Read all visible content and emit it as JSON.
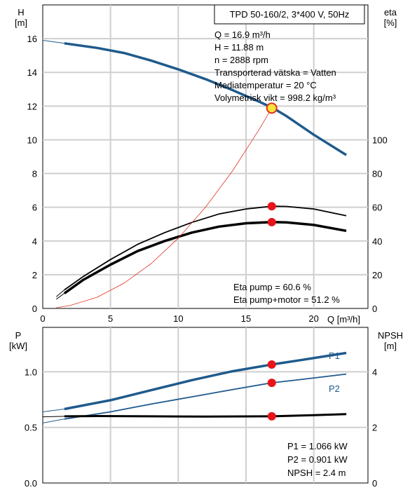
{
  "chart_data": [
    {
      "type": "line",
      "title": "TPD 50-160/2, 3*400 V, 50Hz",
      "xlabel": "Q [m³/h]",
      "ylabel": [
        "H",
        "[m]"
      ],
      "y2label": [
        "eta",
        "[%]"
      ],
      "xlim": [
        0,
        24
      ],
      "ylim": [
        0,
        18
      ],
      "y2lim": [
        0,
        180
      ],
      "x_ticks": [
        "0",
        "5",
        "10",
        "15",
        "20"
      ],
      "y_ticks": [
        "0",
        "2",
        "4",
        "6",
        "8",
        "10",
        "12",
        "14",
        "16"
      ],
      "y2_ticks": [
        "0",
        "20",
        "40",
        "60",
        "80",
        "100"
      ],
      "info_lines": [
        "Q = 16.9 m³/h",
        "H = 11.88 m",
        "n = 2888 rpm",
        "Transporterad vätska = Vatten",
        "Mediatemperatur = 20 °C",
        "Volymetrisk vikt = 998.2 kg/m³"
      ],
      "efficiency_lines": [
        "Eta pump = 60.6 %",
        "Eta pump+motor = 51.2 %"
      ],
      "grid": true,
      "series": [
        {
          "key": "H",
          "axis": "left",
          "color": "#1f5a8c",
          "x": [
            1.6,
            4,
            6,
            8,
            10,
            12,
            14,
            16,
            17,
            18,
            20,
            22.4
          ],
          "y": [
            15.72,
            15.45,
            15.15,
            14.7,
            14.18,
            13.6,
            12.95,
            12.25,
            11.88,
            11.4,
            10.3,
            9.1
          ],
          "ext_x": [
            0,
            1.6
          ],
          "ext_y": [
            15.9,
            15.72
          ]
        },
        {
          "key": "eta_pump",
          "axis": "right",
          "color": "#000000",
          "x": [
            1.6,
            3,
            5,
            7,
            9,
            11,
            13,
            15,
            16.9,
            18,
            20,
            22.4
          ],
          "y": [
            11,
            19,
            29,
            38,
            45,
            51,
            56,
            59,
            60.6,
            60.5,
            59,
            55
          ],
          "ext_x": [
            1,
            1.6
          ],
          "ext_y": [
            7,
            11
          ]
        },
        {
          "key": "eta_pump_motor",
          "axis": "right",
          "color": "#000000",
          "x": [
            1.6,
            3,
            5,
            7,
            9,
            11,
            13,
            15,
            16.9,
            18,
            20,
            22.4
          ],
          "y": [
            9,
            17,
            26,
            34,
            40,
            45,
            48.5,
            50.5,
            51.2,
            51,
            49.5,
            46
          ],
          "ext_x": [
            1,
            1.6
          ],
          "ext_y": [
            5.5,
            9
          ]
        },
        {
          "key": "system_curve",
          "axis": "left",
          "color": "#e03020",
          "x": [
            1,
            2,
            4,
            6,
            8,
            10,
            12,
            14,
            16,
            16.9
          ],
          "y": [
            0.04,
            0.17,
            0.66,
            1.5,
            2.66,
            4.16,
            5.99,
            8.15,
            10.65,
            11.88
          ]
        }
      ],
      "operating_points": [
        {
          "key": "H",
          "x": 16.9,
          "y": 11.88
        },
        {
          "key": "eta_pump",
          "x": 16.9,
          "y": 60.6
        },
        {
          "key": "eta_pump_motor",
          "x": 16.9,
          "y": 51.2
        }
      ]
    },
    {
      "type": "line",
      "xlim": [
        0,
        24
      ],
      "ylabel": [
        "P",
        "[kW]"
      ],
      "y2label": [
        "NPSH",
        "[m]"
      ],
      "ylim": [
        0,
        1.4
      ],
      "y2lim": [
        0,
        5.6
      ],
      "y_ticks": [
        "0.0",
        "0.5",
        "1.0"
      ],
      "y2_ticks": [
        "0",
        "2",
        "4"
      ],
      "info_lines": [
        "P1 = 1.066 kW",
        "P2 = 0.901 kW",
        "NPSH = 2.4 m"
      ],
      "grid": true,
      "series": [
        {
          "key": "P1",
          "name": "P1",
          "axis": "left",
          "color": "#1f5a8c",
          "x": [
            1.6,
            5,
            8,
            11,
            14,
            16.9,
            19,
            22.4
          ],
          "y": [
            0.665,
            0.745,
            0.835,
            0.925,
            1.005,
            1.066,
            1.105,
            1.17
          ],
          "ext_x": [
            0,
            1.6
          ],
          "ext_y": [
            0.64,
            0.665
          ]
        },
        {
          "key": "P2",
          "name": "P2",
          "axis": "left",
          "color": "#1f5a8c",
          "x": [
            1.6,
            5,
            8,
            11,
            14,
            16.9,
            19,
            22.4
          ],
          "y": [
            0.575,
            0.64,
            0.71,
            0.775,
            0.84,
            0.901,
            0.93,
            0.98
          ],
          "ext_x": [
            0,
            1.6
          ],
          "ext_y": [
            0.54,
            0.575
          ]
        },
        {
          "key": "NPSH",
          "axis": "right",
          "color": "#000000",
          "x": [
            1.6,
            4,
            8,
            12,
            16.9,
            20,
            22.4
          ],
          "y": [
            2.4,
            2.41,
            2.4,
            2.39,
            2.4,
            2.44,
            2.48
          ],
          "ext_x": [
            0,
            1.6
          ],
          "ext_y": [
            2.38,
            2.4
          ]
        }
      ],
      "operating_points": [
        {
          "key": "P1",
          "x": 16.9,
          "y": 1.066
        },
        {
          "key": "P2",
          "x": 16.9,
          "y": 0.901
        },
        {
          "key": "NPSH",
          "x": 16.9,
          "y": 2.4
        }
      ]
    }
  ]
}
